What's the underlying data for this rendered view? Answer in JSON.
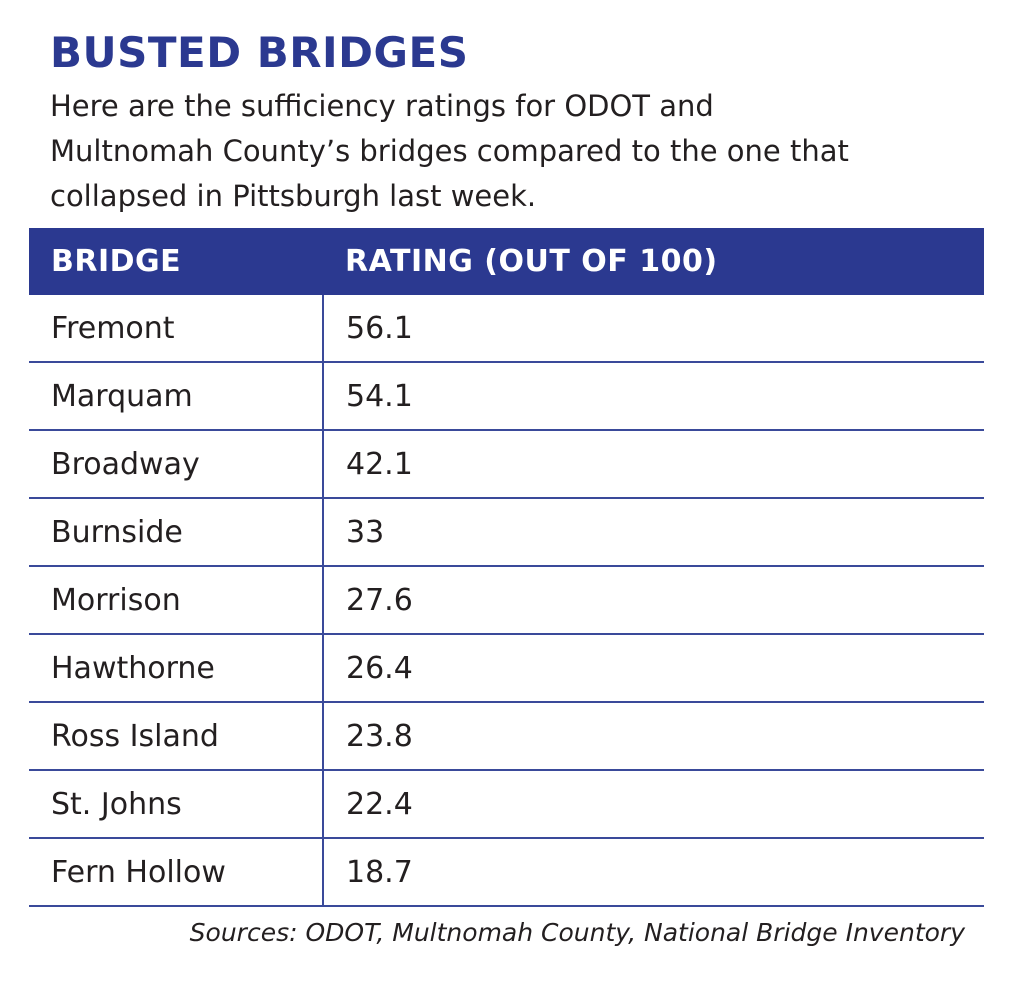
{
  "header": {
    "title": "BUSTED BRIDGES",
    "subtitle": "Here are the sufficiency ratings for ODOT and Multnomah County’s bridges compared to the one that collapsed in Pittsburgh last week."
  },
  "table": {
    "columns": [
      "BRIDGE",
      "RATING (OUT OF 100)"
    ],
    "rows": [
      [
        "Fremont",
        "56.1"
      ],
      [
        "Marquam",
        "54.1"
      ],
      [
        "Broadway",
        "42.1"
      ],
      [
        "Burnside",
        "33"
      ],
      [
        "Morrison",
        "27.6"
      ],
      [
        "Hawthorne",
        "26.4"
      ],
      [
        "Ross Island",
        "23.8"
      ],
      [
        "St. Johns",
        "22.4"
      ],
      [
        "Fern Hollow",
        "18.7"
      ]
    ]
  },
  "source": "Sources: ODOT, Multnomah County, National Bridge Inventory"
}
